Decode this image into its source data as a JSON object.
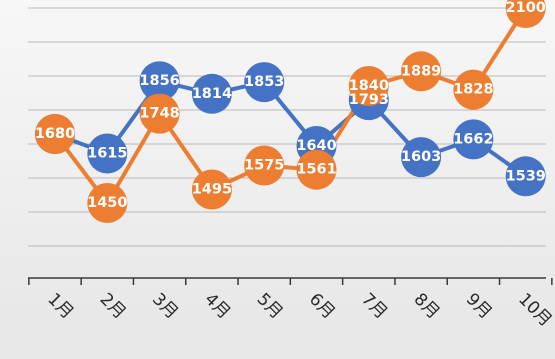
{
  "chart_data": {
    "type": "line",
    "categories": [
      "1月",
      "2月",
      "3月",
      "4月",
      "5月",
      "6月",
      "7月",
      "8月",
      "9月",
      "10月"
    ],
    "series": [
      {
        "color": "#4472c4",
        "values": [
          1680,
          1615,
          1856,
          1814,
          1853,
          1640,
          1793,
          1603,
          1662,
          1539
        ]
      },
      {
        "color": "#ed7d31",
        "values": [
          1680,
          1450,
          1748,
          1495,
          1575,
          1561,
          1840,
          1889,
          1828,
          2100
        ]
      }
    ],
    "ylim": [
      1200,
      2100
    ],
    "grid": true,
    "data_labels": true,
    "title": "",
    "xlabel": "",
    "ylabel": ""
  }
}
